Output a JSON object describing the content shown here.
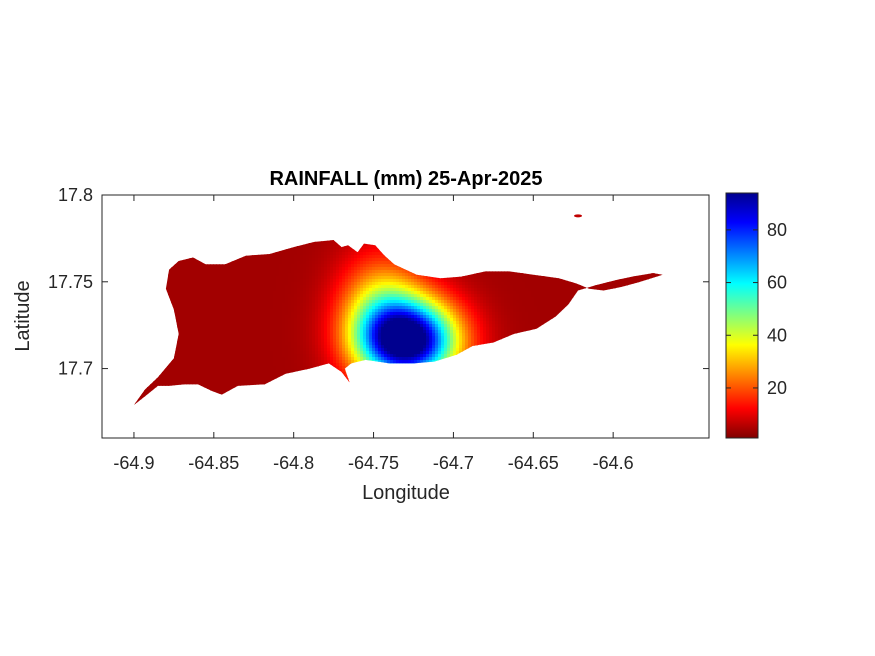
{
  "chart_data": {
    "type": "heatmap",
    "title": "RAINFALL (mm) 25-Apr-2025",
    "xlabel": "Longitude",
    "ylabel": "Latitude",
    "xlim": [
      -64.92,
      -64.54
    ],
    "ylim": [
      17.66,
      17.8
    ],
    "xticks": [
      -64.9,
      -64.85,
      -64.8,
      -64.75,
      -64.7,
      -64.65,
      -64.6
    ],
    "xtick_labels": [
      "-64.9",
      "-64.85",
      "-64.8",
      "-64.75",
      "-64.7",
      "-64.65",
      "-64.6"
    ],
    "yticks": [
      17.7,
      17.75,
      17.8
    ],
    "ytick_labels": [
      "17.7",
      "17.75",
      "17.8"
    ],
    "colormap": "jet",
    "color_limits": [
      1,
      94
    ],
    "colorbar_ticks": [
      20,
      40,
      60,
      80
    ],
    "colorbar_tick_labels": [
      "20",
      "40",
      "60",
      "80"
    ],
    "colormap_stops": [
      "#00008f",
      "#0000ff",
      "#00ffff",
      "#ffff00",
      "#ff0000",
      "#800000"
    ],
    "grid": false,
    "land_outline": [
      [
        -64.9,
        17.679
      ],
      [
        -64.893,
        17.684
      ],
      [
        -64.885,
        17.69
      ],
      [
        -64.878,
        17.69
      ],
      [
        -64.868,
        17.691
      ],
      [
        -64.86,
        17.691
      ],
      [
        -64.851,
        17.687
      ],
      [
        -64.845,
        17.685
      ],
      [
        -64.835,
        17.69
      ],
      [
        -64.818,
        17.691
      ],
      [
        -64.805,
        17.697
      ],
      [
        -64.79,
        17.7
      ],
      [
        -64.778,
        17.703
      ],
      [
        -64.77,
        17.698
      ],
      [
        -64.765,
        17.692
      ],
      [
        -64.768,
        17.7
      ],
      [
        -64.764,
        17.703
      ],
      [
        -64.755,
        17.705
      ],
      [
        -64.74,
        17.703
      ],
      [
        -64.725,
        17.703
      ],
      [
        -64.712,
        17.704
      ],
      [
        -64.698,
        17.708
      ],
      [
        -64.688,
        17.713
      ],
      [
        -64.675,
        17.715
      ],
      [
        -64.662,
        17.72
      ],
      [
        -64.648,
        17.723
      ],
      [
        -64.636,
        17.73
      ],
      [
        -64.628,
        17.737
      ],
      [
        -64.622,
        17.745
      ],
      [
        -64.611,
        17.748
      ],
      [
        -64.598,
        17.751
      ],
      [
        -64.588,
        17.753
      ],
      [
        -64.575,
        17.755
      ],
      [
        -64.569,
        17.754
      ],
      [
        -64.583,
        17.75
      ],
      [
        -64.595,
        17.747
      ],
      [
        -64.606,
        17.745
      ],
      [
        -64.615,
        17.746
      ],
      [
        -64.623,
        17.749
      ],
      [
        -64.634,
        17.752
      ],
      [
        -64.65,
        17.754
      ],
      [
        -64.665,
        17.756
      ],
      [
        -64.68,
        17.756
      ],
      [
        -64.695,
        17.753
      ],
      [
        -64.708,
        17.752
      ],
      [
        -64.723,
        17.754
      ],
      [
        -64.737,
        17.76
      ],
      [
        -64.743,
        17.765
      ],
      [
        -64.749,
        17.771
      ],
      [
        -64.756,
        17.772
      ],
      [
        -64.76,
        17.767
      ],
      [
        -64.766,
        17.771
      ],
      [
        -64.77,
        17.77
      ],
      [
        -64.775,
        17.774
      ],
      [
        -64.787,
        17.773
      ],
      [
        -64.8,
        17.77
      ],
      [
        -64.815,
        17.766
      ],
      [
        -64.83,
        17.765
      ],
      [
        -64.843,
        17.76
      ],
      [
        -64.855,
        17.76
      ],
      [
        -64.863,
        17.764
      ],
      [
        -64.872,
        17.762
      ],
      [
        -64.878,
        17.757
      ],
      [
        -64.88,
        17.746
      ],
      [
        -64.875,
        17.734
      ],
      [
        -64.872,
        17.72
      ],
      [
        -64.875,
        17.706
      ],
      [
        -64.885,
        17.695
      ],
      [
        -64.893,
        17.688
      ],
      [
        -64.9,
        17.679
      ]
    ],
    "rainfall_centers": [
      {
        "lon": -64.728,
        "lat": 17.716,
        "value": 94,
        "sigma_lon": 0.021,
        "sigma_lat": 0.016
      },
      {
        "lon": -64.745,
        "lat": 17.733,
        "value": 30,
        "sigma_lon": 0.018,
        "sigma_lat": 0.022
      }
    ],
    "background_value": 4
  }
}
